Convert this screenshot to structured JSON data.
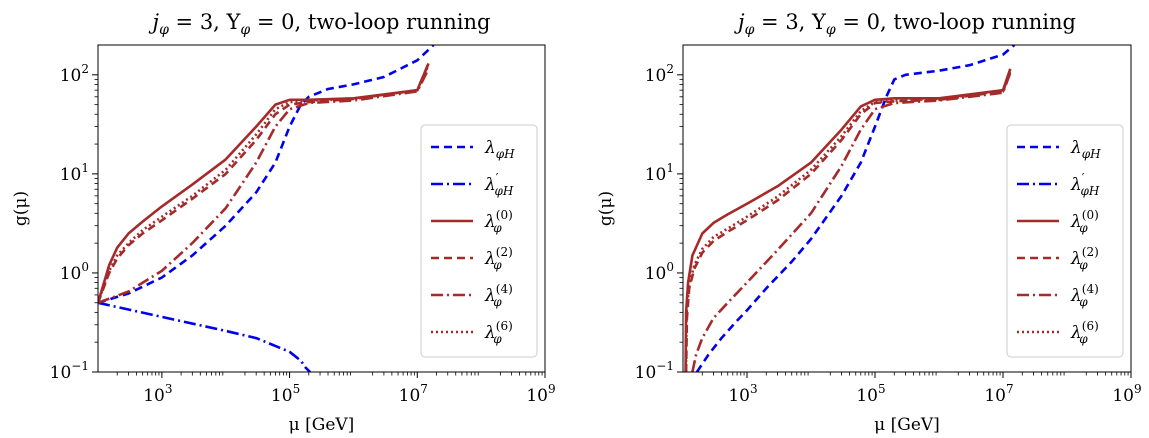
{
  "chart_data": [
    {
      "type": "line",
      "title": "j_φ = 3, Y_φ = 0, two-loop running",
      "title_parts": [
        "j",
        "φ",
        " = 3, Y",
        "φ",
        " = 0, two-loop running"
      ],
      "xlabel": "μ [GeV]",
      "ylabel": "g(μ)",
      "xscale": "log",
      "yscale": "log",
      "xlim": [
        100,
        1000000000
      ],
      "ylim": [
        0.1,
        200
      ],
      "x_ticks": [
        {
          "base": "10",
          "exp": "3"
        },
        {
          "base": "10",
          "exp": "5"
        },
        {
          "base": "10",
          "exp": "7"
        },
        {
          "base": "10",
          "exp": "9"
        }
      ],
      "y_ticks": [
        {
          "base": "10",
          "exp": "−1"
        },
        {
          "base": "10",
          "exp": "0"
        },
        {
          "base": "10",
          "exp": "1"
        },
        {
          "base": "10",
          "exp": "2"
        }
      ],
      "legend_position": "center-right",
      "series": [
        {
          "name": "λ_φH",
          "label_main": "λ",
          "label_sub": "φH",
          "label_sup": "",
          "color": "#0000ee",
          "dash": "8,5",
          "x": [
            100,
            300,
            1000,
            3000,
            10000,
            30000,
            60000,
            100000,
            150000,
            200000,
            400000,
            1000000,
            3000000,
            10000000,
            18000000
          ],
          "y": [
            0.5,
            0.62,
            0.9,
            1.5,
            3.0,
            6.5,
            13,
            30,
            50,
            60,
            72,
            80,
            95,
            140,
            200
          ]
        },
        {
          "name": "λ'_φH",
          "label_main": "λ",
          "label_sub": "φH",
          "label_sup": "′",
          "color": "#0000ee",
          "dash": "12,4,2,4",
          "x": [
            100,
            1000,
            10000,
            30000,
            100000,
            150000,
            180000,
            210000
          ],
          "y": [
            0.5,
            0.36,
            0.26,
            0.22,
            0.16,
            0.13,
            0.11,
            0.1
          ]
        },
        {
          "name": "λ_φ^(0)",
          "label_main": "λ",
          "label_sub": "φ",
          "label_sup": "(0)",
          "color": "#a52a2a",
          "dash": "",
          "x": [
            100,
            150,
            200,
            300,
            500,
            1000,
            3000,
            10000,
            30000,
            60000,
            100000,
            200000,
            1000000,
            10000000,
            15000000
          ],
          "y": [
            0.5,
            1.2,
            1.8,
            2.5,
            3.3,
            4.7,
            7.8,
            14,
            30,
            50,
            56,
            56,
            58,
            70,
            130
          ]
        },
        {
          "name": "λ_φ^(2)",
          "label_main": "λ",
          "label_sub": "φ",
          "label_sup": "(2)",
          "color": "#a52a2a",
          "dash": "8,5",
          "x": [
            100,
            150,
            200,
            300,
            500,
            1000,
            3000,
            10000,
            30000,
            60000,
            100000,
            200000,
            1000000,
            10000000,
            15000000
          ],
          "y": [
            0.5,
            1.0,
            1.4,
            1.9,
            2.5,
            3.4,
            5.6,
            10,
            22,
            40,
            50,
            53,
            57,
            70,
            130
          ]
        },
        {
          "name": "λ_φ^(4)",
          "label_main": "λ",
          "label_sub": "φ",
          "label_sup": "(4)",
          "color": "#a52a2a",
          "dash": "12,4,2,4",
          "x": [
            100,
            300,
            1000,
            3000,
            10000,
            30000,
            60000,
            100000,
            200000,
            1000000,
            10000000,
            15000000
          ],
          "y": [
            0.5,
            0.65,
            1.05,
            2.0,
            4.5,
            13,
            30,
            45,
            52,
            55,
            68,
            115
          ]
        },
        {
          "name": "λ_φ^(6)",
          "label_main": "λ",
          "label_sub": "φ",
          "label_sup": "(6)",
          "color": "#a52a2a",
          "dash": "2,3",
          "x": [
            100,
            150,
            200,
            300,
            500,
            1000,
            3000,
            10000,
            30000,
            60000,
            100000,
            200000,
            1000000,
            10000000,
            15000000
          ],
          "y": [
            0.5,
            1.05,
            1.5,
            2.0,
            2.7,
            3.7,
            6.0,
            11,
            25,
            45,
            53,
            55,
            57,
            70,
            125
          ]
        }
      ]
    },
    {
      "type": "line",
      "title": "j_φ = 3, Y_φ = 0, two-loop running",
      "title_parts": [
        "j",
        "φ",
        " = 3, Y",
        "φ",
        " = 0, two-loop running"
      ],
      "xlabel": "μ [GeV]",
      "ylabel": "g(μ)",
      "xscale": "log",
      "yscale": "log",
      "xlim": [
        100,
        1000000000
      ],
      "ylim": [
        0.1,
        200
      ],
      "x_ticks": [
        {
          "base": "10",
          "exp": "3"
        },
        {
          "base": "10",
          "exp": "5"
        },
        {
          "base": "10",
          "exp": "7"
        },
        {
          "base": "10",
          "exp": "9"
        }
      ],
      "y_ticks": [
        {
          "base": "10",
          "exp": "−1"
        },
        {
          "base": "10",
          "exp": "0"
        },
        {
          "base": "10",
          "exp": "1"
        },
        {
          "base": "10",
          "exp": "2"
        }
      ],
      "legend_position": "center-right",
      "series": [
        {
          "name": "λ_φH",
          "label_main": "λ",
          "label_sub": "φH",
          "label_sup": "",
          "color": "#0000ee",
          "dash": "8,5",
          "x": [
            165,
            250,
            400,
            700,
            1000,
            2000,
            5000,
            10000,
            30000,
            60000,
            100000,
            150000,
            200000,
            300000,
            1000000,
            3000000,
            10000000,
            15000000
          ],
          "y": [
            0.1,
            0.15,
            0.22,
            0.33,
            0.42,
            0.7,
            1.3,
            2.2,
            6.0,
            13,
            30,
            60,
            90,
            100,
            110,
            125,
            160,
            200
          ]
        },
        {
          "name": "λ'_φH",
          "label_main": "λ",
          "label_sub": "φH",
          "label_sup": "′",
          "color": "#0000ee",
          "dash": "12,4,2,4",
          "x": [],
          "y": []
        },
        {
          "name": "λ_φ^(0)",
          "label_main": "λ",
          "label_sub": "φ",
          "label_sup": "(0)",
          "color": "#a52a2a",
          "dash": "",
          "x": [
            110,
            112,
            120,
            140,
            200,
            300,
            500,
            1000,
            3000,
            10000,
            30000,
            60000,
            100000,
            200000,
            1000000,
            10000000,
            13000000
          ],
          "y": [
            0.1,
            0.4,
            0.8,
            1.5,
            2.5,
            3.2,
            3.9,
            5.0,
            7.5,
            13,
            28,
            48,
            56,
            58,
            58,
            70,
            115
          ]
        },
        {
          "name": "λ_φ^(2)",
          "label_main": "λ",
          "label_sub": "φ",
          "label_sup": "(2)",
          "color": "#a52a2a",
          "dash": "8,5",
          "x": [
            112,
            115,
            125,
            150,
            200,
            300,
            500,
            1000,
            3000,
            10000,
            30000,
            60000,
            100000,
            200000,
            1000000,
            10000000,
            13000000
          ],
          "y": [
            0.1,
            0.35,
            0.7,
            1.1,
            1.6,
            2.1,
            2.6,
            3.4,
            5.4,
            10,
            22,
            40,
            52,
            54,
            56,
            68,
            110
          ]
        },
        {
          "name": "λ_φ^(4)",
          "label_main": "λ",
          "label_sub": "φ",
          "label_sup": "(4)",
          "color": "#a52a2a",
          "dash": "12,4,2,4",
          "x": [
            140,
            160,
            200,
            300,
            500,
            1000,
            3000,
            10000,
            30000,
            60000,
            100000,
            200000,
            1000000,
            10000000,
            13000000
          ],
          "y": [
            0.1,
            0.15,
            0.22,
            0.35,
            0.5,
            0.8,
            1.7,
            4.0,
            12,
            28,
            45,
            52,
            55,
            66,
            105
          ]
        },
        {
          "name": "λ_φ^(6)",
          "label_main": "λ",
          "label_sub": "φ",
          "label_sup": "(6)",
          "color": "#a52a2a",
          "dash": "2,3",
          "x": [
            111,
            114,
            125,
            150,
            200,
            300,
            500,
            1000,
            3000,
            10000,
            30000,
            60000,
            100000,
            200000,
            1000000,
            10000000,
            13000000
          ],
          "y": [
            0.1,
            0.4,
            0.75,
            1.2,
            1.75,
            2.3,
            2.8,
            3.7,
            5.9,
            11,
            24,
            43,
            53,
            55,
            57,
            69,
            112
          ]
        }
      ]
    }
  ]
}
